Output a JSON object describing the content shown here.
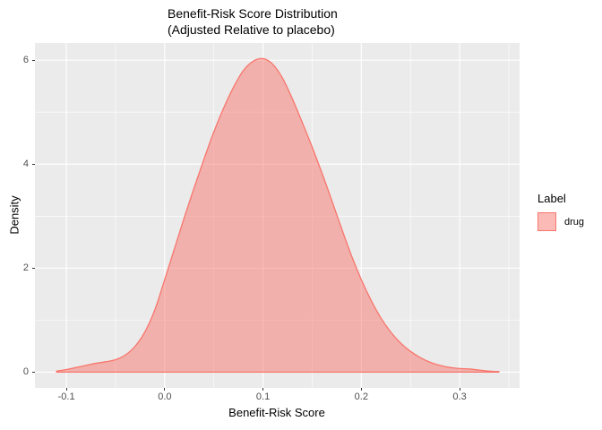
{
  "title": {
    "line1": "Benefit-Risk Score Distribution",
    "line2": "(Adjusted Relative to placebo)"
  },
  "axes": {
    "x": {
      "label": "Benefit-Risk Score",
      "tick_labels": [
        "-0.1",
        "0.0",
        "0.1",
        "0.2",
        "0.3"
      ],
      "tick_values": [
        -0.1,
        0.0,
        0.1,
        0.2,
        0.3
      ],
      "minor_values": [
        -0.05,
        0.05,
        0.15,
        0.25,
        0.35
      ]
    },
    "y": {
      "label": "Density",
      "tick_labels": [
        "0",
        "2",
        "4",
        "6"
      ],
      "tick_values": [
        0,
        2,
        4,
        6
      ],
      "minor_values": [
        1,
        3,
        5
      ]
    }
  },
  "legend": {
    "title": "Label",
    "items": [
      {
        "label": "drug",
        "fill": "rgba(248,118,109,0.5)",
        "stroke": "#F8766D"
      }
    ]
  },
  "colors": {
    "background": "#FFFFFF",
    "panel_background": "#EBEBEB",
    "gridline": "#FFFFFF",
    "curve_stroke": "#F8766D",
    "curve_fill": "rgba(248,118,109,0.5)",
    "tick_text": "#4D4D4D",
    "tick_mark": "#333333",
    "title_text": "#000000"
  },
  "chart_data": {
    "type": "area",
    "subtype": "kernel-density",
    "title": "Benefit-Risk Score Distribution (Adjusted Relative to placebo)",
    "xlabel": "Benefit-Risk Score",
    "ylabel": "Density",
    "xlim": [
      -0.132,
      0.361
    ],
    "ylim": [
      -0.303,
      6.33
    ],
    "grid": "white major and minor gridlines on grey panel",
    "legend_position": "right",
    "series": [
      {
        "name": "drug",
        "fill": "rgba(248,118,109,0.5)",
        "stroke": "#F8766D",
        "x": [
          -0.11,
          -0.1,
          -0.09,
          -0.08,
          -0.07,
          -0.06,
          -0.05,
          -0.04,
          -0.03,
          -0.02,
          -0.01,
          0.0,
          0.01,
          0.02,
          0.03,
          0.04,
          0.05,
          0.06,
          0.07,
          0.08,
          0.09,
          0.1,
          0.11,
          0.12,
          0.13,
          0.14,
          0.15,
          0.16,
          0.17,
          0.18,
          0.19,
          0.2,
          0.21,
          0.22,
          0.23,
          0.24,
          0.25,
          0.26,
          0.27,
          0.28,
          0.29,
          0.3,
          0.31,
          0.32,
          0.33,
          0.34
        ],
        "density": [
          0.02,
          0.05,
          0.09,
          0.13,
          0.17,
          0.2,
          0.24,
          0.33,
          0.5,
          0.78,
          1.2,
          1.78,
          2.38,
          2.98,
          3.55,
          4.1,
          4.62,
          5.08,
          5.48,
          5.8,
          5.98,
          6.03,
          5.92,
          5.65,
          5.25,
          4.8,
          4.33,
          3.83,
          3.3,
          2.76,
          2.24,
          1.78,
          1.38,
          1.04,
          0.77,
          0.56,
          0.4,
          0.28,
          0.19,
          0.13,
          0.09,
          0.07,
          0.06,
          0.04,
          0.02,
          0.01
        ]
      }
    ]
  }
}
